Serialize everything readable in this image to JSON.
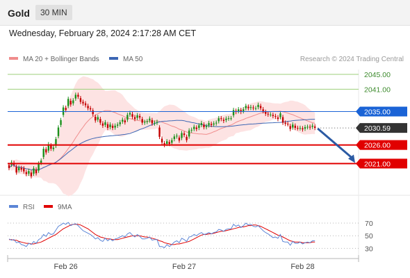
{
  "header": {
    "title": "Gold",
    "timeframe": "30 MIN",
    "datetime": "Wednesday, February 28, 2024 2:17:28 AM CET"
  },
  "legend": {
    "ma20": "MA 20 + Bollinger Bands",
    "ma50": "MA 50",
    "credit": "Research © 2024 Trading Central"
  },
  "rsi_legend": {
    "rsi": "RSI",
    "ma": "9MA"
  },
  "colors": {
    "up": "#1a8f1a",
    "down": "#c40000",
    "resistance": "#9ccf78",
    "pivot": "#1a63d6",
    "support": "#e10000",
    "ma20": "#f08c8c",
    "ma50": "#3c66b4",
    "band": "#fde3e3",
    "rsi": "#5b85d6",
    "rsi_ma": "#e00000",
    "arrow": "#2b5aa3",
    "current": "#333333"
  },
  "chart_data": [
    {
      "type": "candlestick",
      "xlabels": [
        "Feb 26",
        "Feb 27",
        "Feb 28"
      ],
      "xlabel_index": [
        23,
        71,
        119
      ],
      "ylim": [
        2013.4,
        2050.2
      ],
      "price_levels": [
        {
          "value": 2045.0,
          "label": "2045.00",
          "kind": "resistance"
        },
        {
          "value": 2041.0,
          "label": "2041.00",
          "kind": "resistance"
        },
        {
          "value": 2035.0,
          "label": "2035.00",
          "kind": "pivot"
        },
        {
          "value": 2026.0,
          "label": "2026.00",
          "kind": "support"
        },
        {
          "value": 2021.0,
          "label": "2021.00",
          "kind": "support"
        }
      ],
      "current_price": {
        "value": 2030.59,
        "label": "2030.59"
      },
      "projection_target": 2021.0,
      "close": [
        2019.8,
        2021.3,
        2020.7,
        2018.6,
        2019.9,
        2019.4,
        2018.9,
        2018.2,
        2019.0,
        2017.6,
        2019.7,
        2018.4,
        2021.0,
        2021.8,
        2025.0,
        2024.0,
        2026.2,
        2025.0,
        2025.3,
        2027.6,
        2030.7,
        2032.7,
        2036.1,
        2035.4,
        2038.4,
        2036.9,
        2038.0,
        2039.5,
        2039.0,
        2037.6,
        2037.2,
        2036.7,
        2035.9,
        2035.6,
        2034.3,
        2032.6,
        2033.5,
        2032.0,
        2031.2,
        2032.1,
        2030.6,
        2031.5,
        2030.6,
        2031.2,
        2031.5,
        2032.1,
        2032.8,
        2032.1,
        2034.1,
        2034.6,
        2033.6,
        2033.0,
        2034.0,
        2033.4,
        2032.0,
        2032.2,
        2032.4,
        2033.1,
        2031.8,
        2032.0,
        2032.2,
        2028.2,
        2026.7,
        2026.0,
        2027.0,
        2026.3,
        2027.3,
        2028.3,
        2028.5,
        2027.2,
        2029.2,
        2028.7,
        2027.3,
        2029.9,
        2030.1,
        2030.9,
        2030.3,
        2031.3,
        2031.9,
        2030.8,
        2031.1,
        2031.9,
        2031.4,
        2031.8,
        2032.0,
        2033.2,
        2033.0,
        2032.5,
        2033.1,
        2033.2,
        2033.2,
        2035.4,
        2034.9,
        2035.6,
        2034.9,
        2035.6,
        2036.5,
        2035.9,
        2036.2,
        2035.9,
        2035.9,
        2036.8,
        2035.9,
        2035.1,
        2034.4,
        2034.2,
        2034.2,
        2033.8,
        2033.6,
        2033.0,
        2034.5,
        2032.0,
        2031.7,
        2031.6,
        2030.3,
        2031.5,
        2030.6,
        2030.5,
        2030.6,
        2030.2,
        2030.8,
        2030.9,
        2030.7,
        2031.2,
        2030.6
      ],
      "open_gap": [
        0.8,
        -0.6,
        0.5,
        1.5,
        -0.7,
        0.4,
        0.8,
        0.5,
        -0.7,
        1.0,
        -1.4,
        1.0,
        -1.9,
        -0.6,
        -2.2,
        0.9,
        -1.7,
        0.9,
        -0.4,
        -1.8,
        -2.3,
        -1.3,
        -2.0,
        0.6,
        -1.9,
        1.0,
        -0.8,
        -1.0,
        0.5,
        1.0,
        0.4,
        0.5,
        0.6,
        0.3,
        1.0,
        1.0,
        -0.7,
        1.0,
        0.6,
        -0.7,
        1.0,
        -0.7,
        0.6,
        -0.5,
        -0.3,
        -0.5,
        -0.5,
        0.5,
        -1.3,
        -0.4,
        0.7,
        0.5,
        -0.7,
        0.4,
        1.0,
        -0.2,
        -0.2,
        -0.5,
        0.9,
        -0.2,
        -0.2,
        2.5,
        1.0,
        0.5,
        -0.7,
        0.5,
        -0.7,
        -0.7,
        -0.2,
        0.8,
        -1.3,
        0.4,
        0.9,
        -1.6,
        -0.2,
        -0.6,
        0.4,
        -0.7,
        -0.5,
        0.7,
        -0.3,
        -0.6,
        0.3,
        -0.3,
        -0.2,
        -0.8,
        0.2,
        0.3,
        -0.4,
        -0.1,
        0.0,
        -1.4,
        0.3,
        -0.5,
        0.5,
        -0.5,
        -0.6,
        0.4,
        -0.2,
        0.2,
        0.0,
        -0.6,
        0.6,
        0.5,
        0.5,
        0.2,
        0.0,
        0.3,
        0.2,
        0.4,
        -1.0,
        1.5,
        0.3,
        0.1,
        0.8,
        -0.8,
        0.6,
        0.1,
        -0.1,
        0.3,
        -0.4,
        -0.1,
        0.2,
        -0.3,
        0.4
      ]
    },
    {
      "type": "line",
      "name": "RSI",
      "ylim": [
        18,
        82
      ],
      "yticks": [
        70,
        50,
        30
      ],
      "series_rsi": [
        45,
        43,
        44,
        39,
        40,
        36,
        35,
        33,
        38,
        36,
        41,
        38,
        44,
        46,
        52,
        49,
        55,
        52,
        53,
        59,
        65,
        67,
        70,
        68,
        71,
        66,
        68,
        69,
        66,
        62,
        58,
        56,
        54,
        52,
        49,
        45,
        47,
        43,
        41,
        46,
        42,
        45,
        42,
        45,
        46,
        48,
        50,
        48,
        53,
        55,
        51,
        48,
        52,
        49,
        45,
        45,
        46,
        48,
        43,
        44,
        44,
        33,
        33,
        31,
        36,
        33,
        36,
        40,
        42,
        39,
        46,
        44,
        41,
        48,
        49,
        52,
        50,
        53,
        55,
        52,
        53,
        55,
        53,
        55,
        56,
        60,
        59,
        57,
        60,
        61,
        61,
        68,
        65,
        67,
        63,
        66,
        70,
        67,
        68,
        65,
        64,
        66,
        62,
        58,
        55,
        53,
        50,
        47,
        48,
        46,
        52,
        41,
        40,
        40,
        35,
        41,
        38,
        38,
        40,
        37,
        39,
        40,
        39,
        42,
        42
      ],
      "series_ma": [
        44,
        44,
        43,
        43,
        41,
        40,
        39,
        38,
        38,
        37,
        37,
        38,
        39,
        40,
        42,
        44,
        46,
        48,
        50,
        52,
        55,
        58,
        61,
        63,
        65,
        67,
        68,
        68,
        68,
        67,
        65,
        63,
        61,
        58,
        55,
        52,
        50,
        48,
        47,
        46,
        45,
        45,
        44,
        44,
        44,
        45,
        46,
        47,
        48,
        49,
        50,
        50,
        50,
        50,
        49,
        48,
        48,
        47,
        46,
        45,
        44,
        42,
        41,
        39,
        38,
        37,
        36,
        36,
        37,
        37,
        38,
        39,
        40,
        41,
        43,
        45,
        47,
        49,
        51,
        52,
        52,
        53,
        53,
        54,
        55,
        56,
        57,
        57,
        58,
        59,
        60,
        61,
        62,
        63,
        64,
        64,
        65,
        66,
        66,
        67,
        67,
        66,
        65,
        63,
        61,
        59,
        57,
        55,
        53,
        51,
        50,
        48,
        46,
        44,
        42,
        41,
        40,
        40,
        40,
        39,
        39,
        39,
        39,
        40,
        40
      ]
    }
  ]
}
